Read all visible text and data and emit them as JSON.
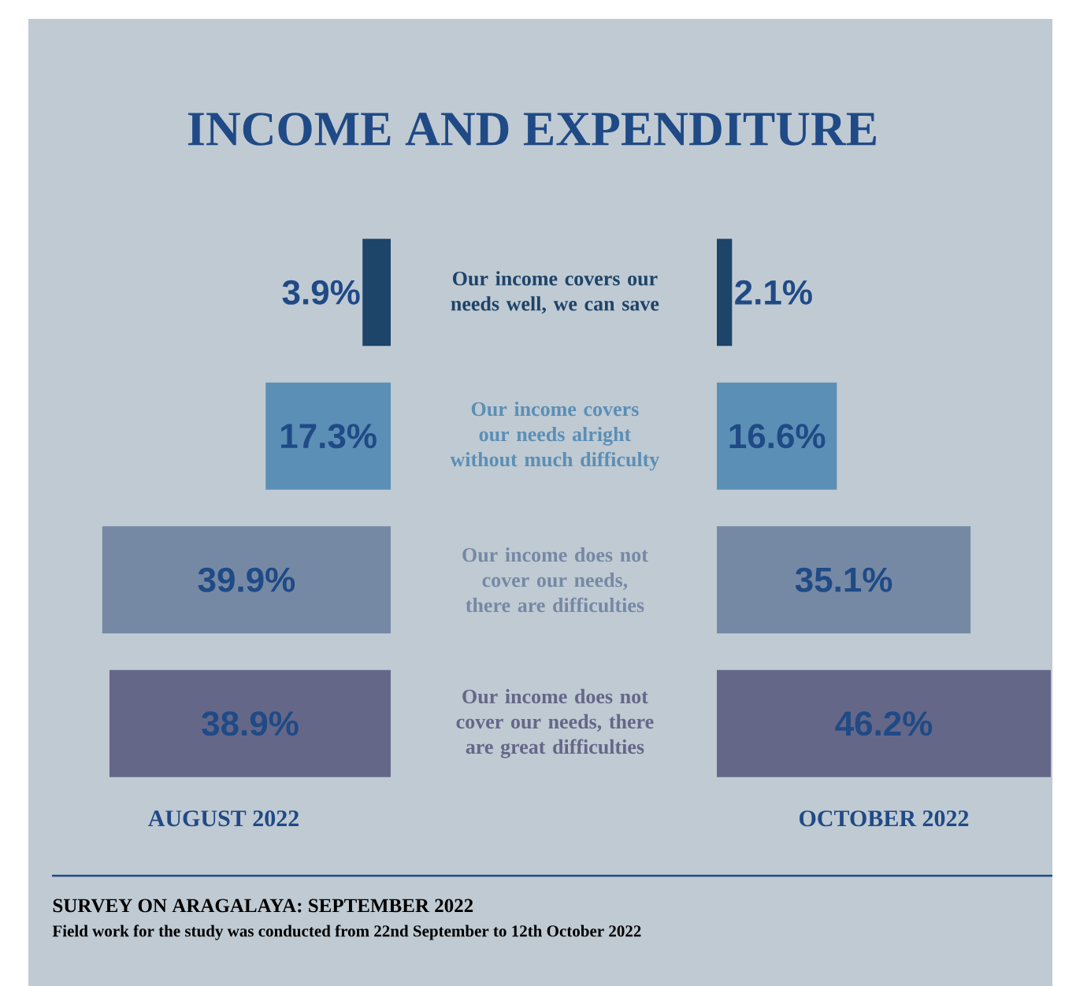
{
  "chart_data": [
    {
      "type": "bar",
      "orientation": "horizontal",
      "title": "INCOME AND EXPENDITURE",
      "xlabel": "AUGUST 2022",
      "categories": [
        "Our income covers our needs well, we can save",
        "Our income covers our needs alright without much difficulty",
        "Our income does not cover our needs, there are difficulties",
        "Our income does not cover our needs, there are great difficulties"
      ],
      "values": [
        3.9,
        17.3,
        39.9,
        38.9
      ],
      "value_labels": [
        "3.9%",
        "17.3%",
        "39.9%",
        "38.9%"
      ],
      "colors": [
        "#1d4469",
        "#5b8fb5",
        "#7589a5",
        "#656788"
      ],
      "tick_labels": "y",
      "annotations": [
        "SURVEY ON ARAGALAYA: SEPTEMBER 2022",
        "Field work for the study was conducted from 22nd September to 12th October 2022"
      ]
    },
    {
      "type": "bar",
      "orientation": "horizontal",
      "xlabel": "OCTOBER 2022",
      "categories": [
        null,
        null,
        null,
        null
      ],
      "values": [
        2.1,
        16.6,
        35.1,
        46.2
      ],
      "value_labels": [
        "2.1%",
        "16.6%",
        "35.1%",
        "46.2%"
      ],
      "colors": [
        "#1d4469",
        "#5b8fb5",
        "#7589a5",
        "#656788"
      ],
      "tick_labels": false
    }
  ]
}
